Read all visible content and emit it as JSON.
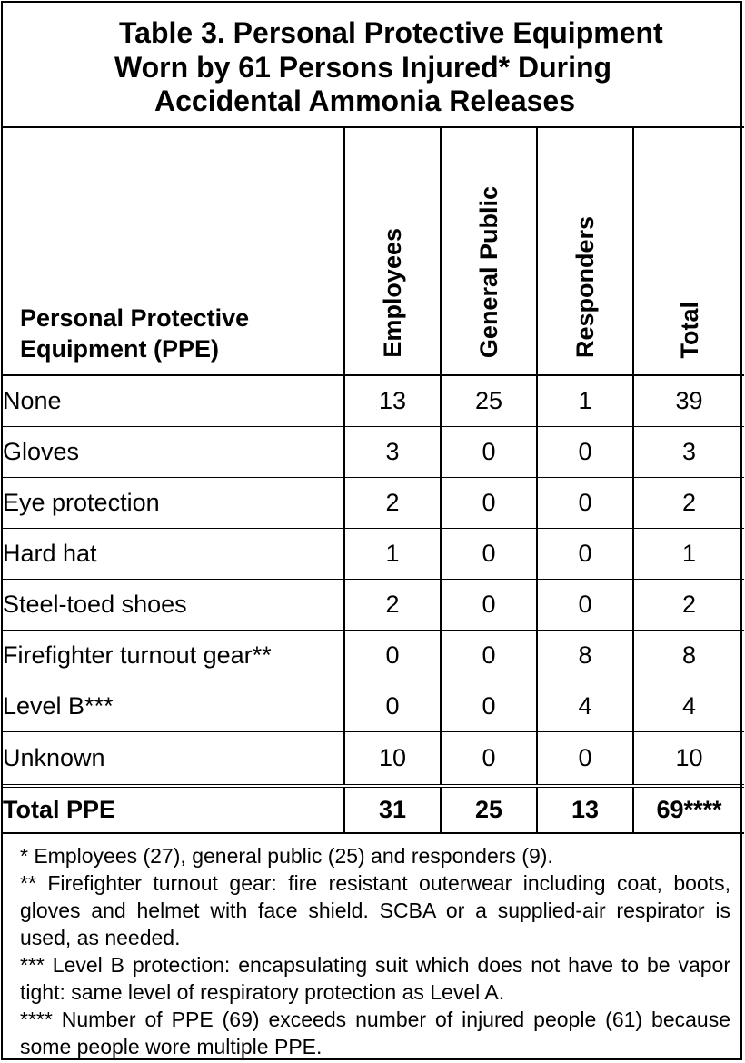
{
  "title": {
    "line1": "Table 3.  Personal Protective Equipment",
    "line2": "Worn by 61 Persons Injured* During",
    "line3": "Accidental Ammonia Releases"
  },
  "table": {
    "row_header_line1": "Personal Protective",
    "row_header_line2": "Equipment (PPE)",
    "columns": [
      "Employees",
      "General Public",
      "Responders",
      "Total"
    ],
    "rows": [
      {
        "label": "None",
        "values": [
          "13",
          "25",
          "1",
          "39"
        ]
      },
      {
        "label": "Gloves",
        "values": [
          "3",
          "0",
          "0",
          "3"
        ]
      },
      {
        "label": "Eye protection",
        "values": [
          "2",
          "0",
          "0",
          "2"
        ]
      },
      {
        "label": "Hard hat",
        "values": [
          "1",
          "0",
          "0",
          "1"
        ]
      },
      {
        "label": "Steel-toed shoes",
        "values": [
          "2",
          "0",
          "0",
          "2"
        ]
      },
      {
        "label": "Firefighter turnout gear**",
        "values": [
          "0",
          "0",
          "8",
          "8"
        ]
      },
      {
        "label": "Level B***",
        "values": [
          "0",
          "0",
          "4",
          "4"
        ]
      },
      {
        "label": "Unknown",
        "values": [
          "10",
          "0",
          "0",
          "10"
        ]
      }
    ],
    "total": {
      "label": "Total PPE",
      "values": [
        "31",
        "25",
        "13",
        "69****"
      ]
    }
  },
  "footnotes": [
    "* Employees (27), general public (25) and responders (9).",
    "** Firefighter turnout gear: fire resistant outerwear including coat, boots, gloves and helmet with face shield.  SCBA or a supplied-air respirator is used, as needed.",
    "*** Level B protection: encapsulating suit which does not have to be vapor tight: same level of respiratory protection as Level A.",
    "**** Number of PPE (69) exceeds number of injured people (61) because some people wore multiple PPE."
  ]
}
